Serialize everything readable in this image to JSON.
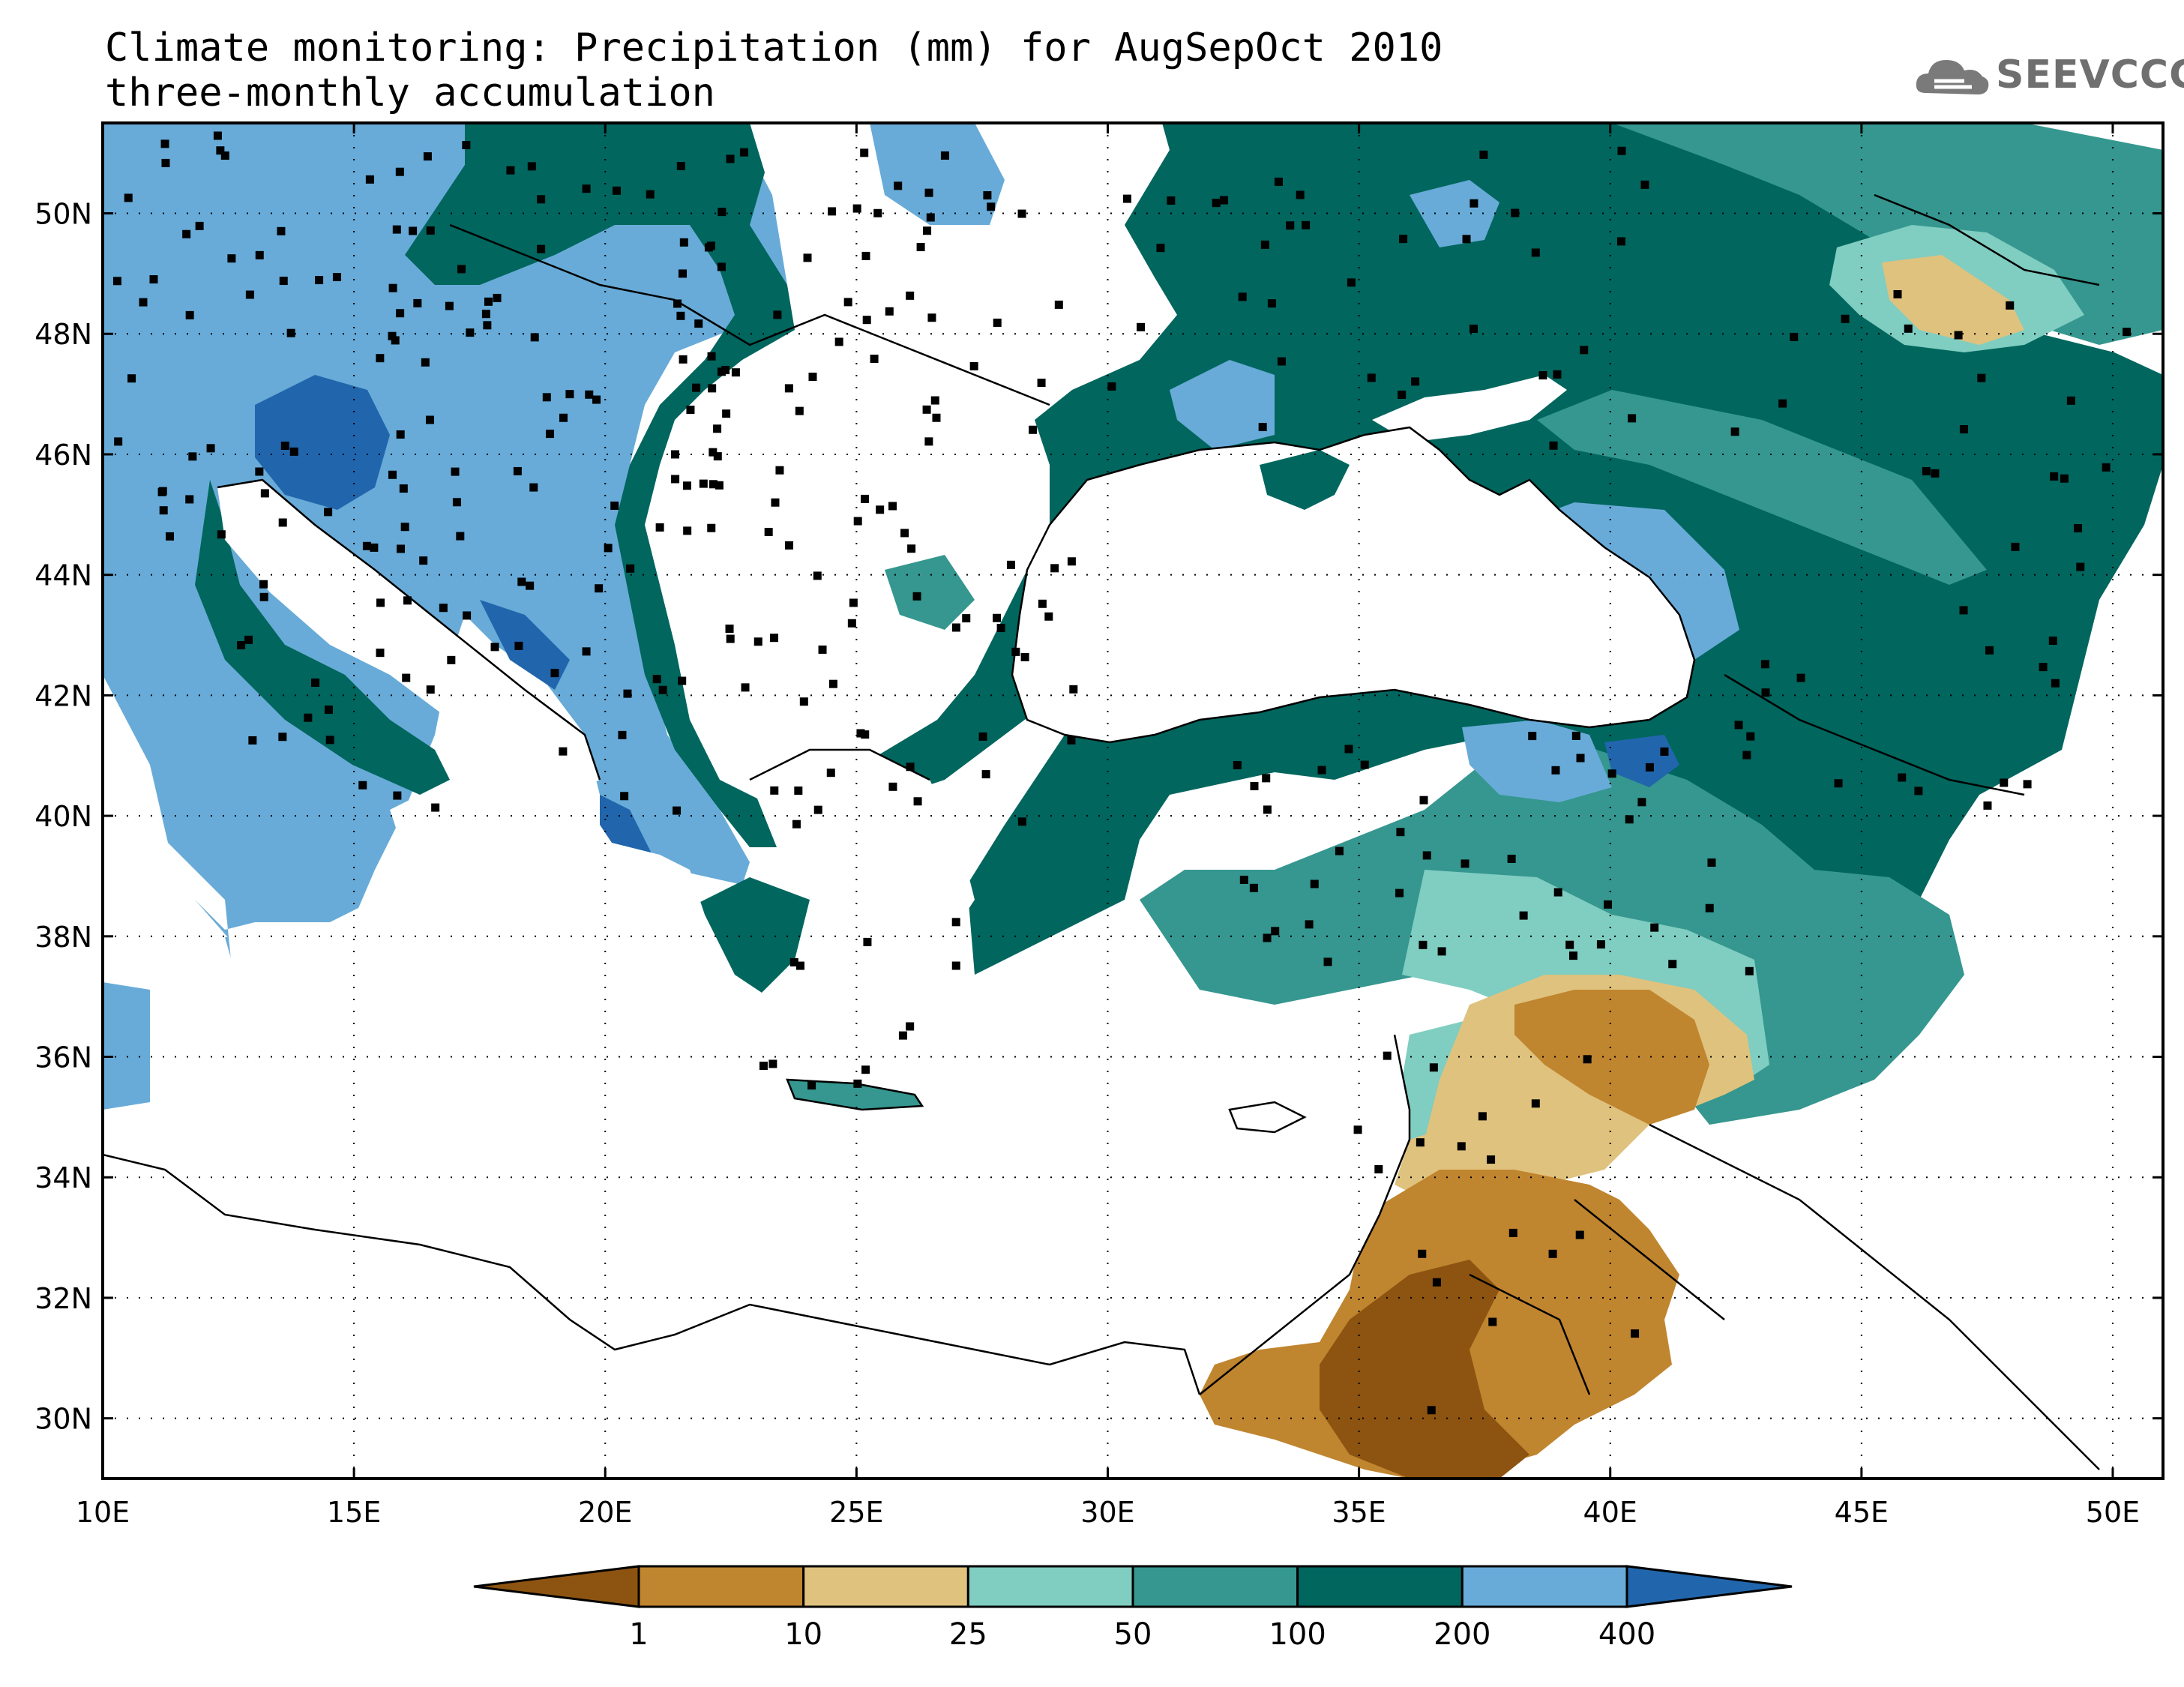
{
  "title": "Climate monitoring: Precipitation (mm) for AugSepOct 2010",
  "subtitle": "three-monthly accumulation",
  "logo_text": "SEEVCCC",
  "map": {
    "lon_range": [
      10,
      51
    ],
    "lat_range": [
      29,
      51.5
    ],
    "lon_ticks": [
      "10E",
      "15E",
      "20E",
      "25E",
      "30E",
      "35E",
      "40E",
      "45E",
      "50E"
    ],
    "lat_ticks": [
      "30N",
      "32N",
      "34N",
      "36N",
      "38N",
      "40N",
      "42N",
      "44N",
      "46N",
      "48N",
      "50N"
    ],
    "gridlines": "dotted"
  },
  "legend": {
    "labels": [
      "1",
      "10",
      "25",
      "50",
      "100",
      "200",
      "400"
    ],
    "colors": [
      "#8c5410",
      "#c0852f",
      "#dfc27d",
      "#80cdc1",
      "#35978f",
      "#01665e",
      "#68abd8",
      "#2166ac"
    ],
    "unit": "mm"
  }
}
